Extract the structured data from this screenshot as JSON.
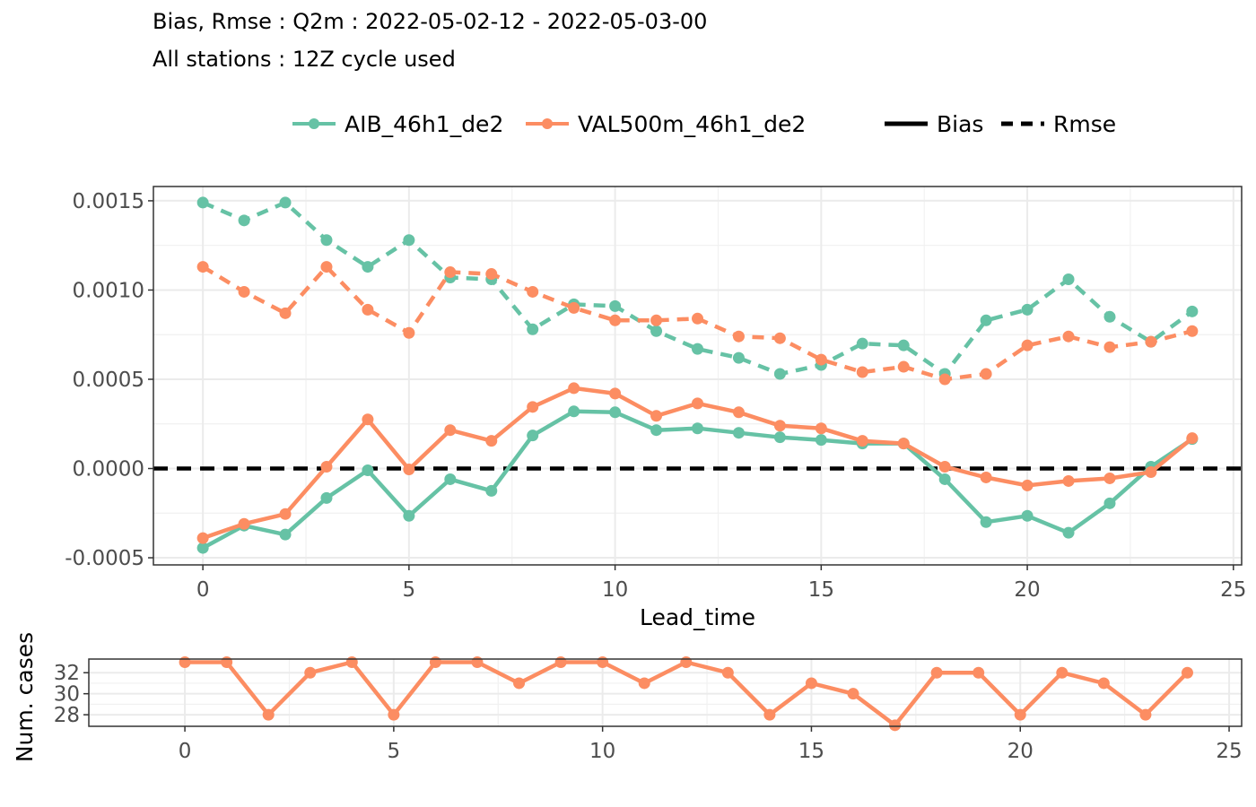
{
  "title_lines": [
    "Bias, Rmse : Q2m : 2022-05-02-12 - 2022-05-03-00",
    "All stations : 12Z cycle used"
  ],
  "legend": {
    "models": [
      {
        "name": "AIB_46h1_de2",
        "color": "#66c2a5"
      },
      {
        "name": "VAL500m_46h1_de2",
        "color": "#fc8d62"
      }
    ],
    "scores": [
      {
        "name": "Bias",
        "style": "solid"
      },
      {
        "name": "Rmse",
        "style": "dashed"
      }
    ]
  },
  "chart_data": [
    {
      "type": "line",
      "xlabel": "Lead_time",
      "ylabel": "",
      "xlim": [
        -1.2,
        25.2
      ],
      "ylim": [
        -0.00054,
        0.00158
      ],
      "xticks": [
        0,
        5,
        10,
        15,
        20,
        25
      ],
      "xtick_labels": [
        "0",
        "5",
        "10",
        "15",
        "20",
        "25"
      ],
      "yticks": [
        -0.0005,
        0,
        0.0005,
        0.001,
        0.0015
      ],
      "ytick_labels": [
        "-0.0005",
        "0.0000",
        "0.0005",
        "0.0010",
        "0.0015"
      ],
      "zero_line": {
        "y": 0,
        "style": "dashed",
        "color": "#000000"
      },
      "grid": true,
      "x": [
        0,
        1,
        2,
        3,
        4,
        5,
        6,
        7,
        8,
        9,
        10,
        11,
        12,
        13,
        14,
        15,
        16,
        17,
        18,
        19,
        20,
        21,
        22,
        23,
        24
      ],
      "series": [
        {
          "name": "AIB_46h1_de2",
          "score": "Rmse",
          "color": "#66c2a5",
          "dashed": true,
          "values": [
            0.00149,
            0.00139,
            0.00149,
            0.00128,
            0.00113,
            0.00128,
            0.00107,
            0.00106,
            0.00078,
            0.00092,
            0.00091,
            0.00077,
            0.00067,
            0.00062,
            0.00053,
            0.00058,
            0.0007,
            0.00069,
            0.00053,
            0.00083,
            0.00089,
            0.00106,
            0.00085,
            0.00071,
            0.00088
          ]
        },
        {
          "name": "VAL500m_46h1_de2",
          "score": "Rmse",
          "color": "#fc8d62",
          "dashed": true,
          "values": [
            0.00113,
            0.00099,
            0.00087,
            0.00113,
            0.00089,
            0.00076,
            0.0011,
            0.00109,
            0.00099,
            0.0009,
            0.00083,
            0.00083,
            0.00084,
            0.00074,
            0.00073,
            0.00061,
            0.00054,
            0.00057,
            0.0005,
            0.00053,
            0.00069,
            0.00074,
            0.00068,
            0.00071,
            0.00077
          ]
        },
        {
          "name": "AIB_46h1_de2",
          "score": "Bias",
          "color": "#66c2a5",
          "dashed": false,
          "values": [
            -0.000445,
            -0.00032,
            -0.00037,
            -0.000165,
            -1e-05,
            -0.000265,
            -6e-05,
            -0.000125,
            0.000185,
            0.00032,
            0.000315,
            0.000215,
            0.000225,
            0.0002,
            0.000175,
            0.00016,
            0.00014,
            0.00014,
            -6e-05,
            -0.0003,
            -0.000265,
            -0.00036,
            -0.000195,
            1e-05,
            0.000165
          ]
        },
        {
          "name": "VAL500m_46h1_de2",
          "score": "Bias",
          "color": "#fc8d62",
          "dashed": false,
          "values": [
            -0.00039,
            -0.00031,
            -0.000255,
            1e-05,
            0.000275,
            -5e-06,
            0.000215,
            0.000155,
            0.000345,
            0.00045,
            0.00042,
            0.000295,
            0.000365,
            0.000315,
            0.00024,
            0.000225,
            0.000155,
            0.00014,
            1e-05,
            -5e-05,
            -9.5e-05,
            -7e-05,
            -5.5e-05,
            -2e-05,
            0.00017
          ]
        }
      ]
    },
    {
      "type": "line",
      "xlabel": "",
      "ylabel": "Num. cases",
      "xlim": [
        -2.3,
        25.3
      ],
      "ylim": [
        26.9,
        33.3
      ],
      "xticks": [
        0,
        5,
        10,
        15,
        20,
        25
      ],
      "xtick_labels": [
        "0",
        "5",
        "10",
        "15",
        "20",
        "25"
      ],
      "yticks": [
        28,
        30,
        32
      ],
      "ytick_labels": [
        "28",
        "30",
        "32"
      ],
      "grid": true,
      "x": [
        0,
        1,
        2,
        3,
        4,
        5,
        6,
        7,
        8,
        9,
        10,
        11,
        12,
        13,
        14,
        15,
        16,
        17,
        18,
        19,
        20,
        21,
        22,
        23,
        24
      ],
      "series": [
        {
          "name": "VAL500m_46h1_de2",
          "color": "#fc8d62",
          "values": [
            33,
            33,
            28,
            32,
            33,
            28,
            33,
            33,
            31,
            33,
            33,
            31,
            33,
            32,
            28,
            31,
            30,
            27,
            32,
            32,
            28,
            32,
            31,
            28,
            32
          ]
        }
      ]
    }
  ]
}
